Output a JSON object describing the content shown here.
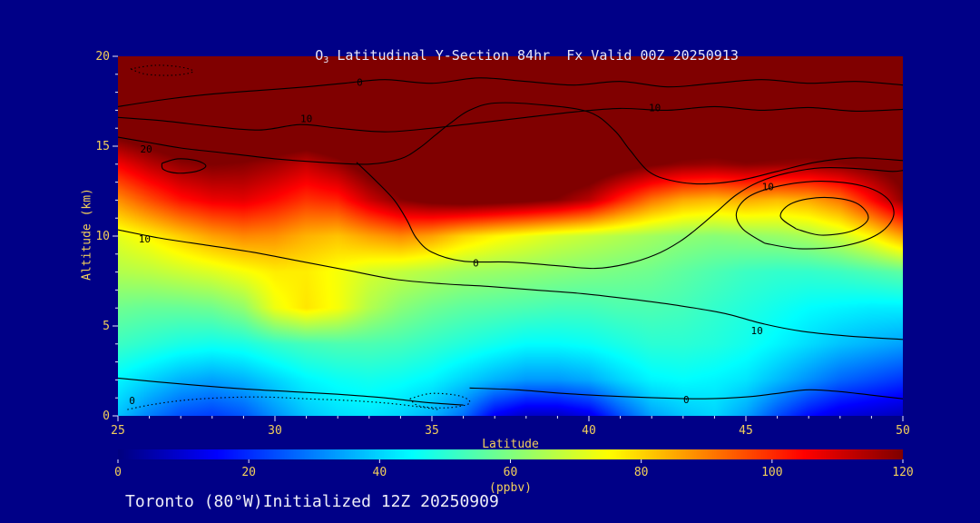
{
  "colors": {
    "background": "#000087",
    "title_text": "#e6e6fa",
    "axis_text": "#f2cf5b",
    "tick_mark": "#e9e9ff",
    "footer_text": "#eeeef8",
    "contour_line": "#000000"
  },
  "title": {
    "prefix": "O",
    "sub": "3",
    "rest": " Latitudinal Y-Section 84hr  Fx Valid 00Z 20250913"
  },
  "footer": {
    "text": "Toronto (80°W)Initialized 12Z 20250909"
  },
  "axes": {
    "x": {
      "label": "Latitude",
      "min": 25,
      "max": 50,
      "ticks": [
        25,
        30,
        35,
        40,
        45,
        50
      ],
      "minor_step": 1
    },
    "y": {
      "label": "Altitude (km)",
      "min": 0,
      "max": 20,
      "ticks": [
        0,
        5,
        10,
        15,
        20
      ],
      "minor_step": 1
    }
  },
  "colorbar": {
    "min": 0,
    "max": 120,
    "ticks": [
      0,
      20,
      40,
      60,
      80,
      100,
      120
    ],
    "label": "(ppbv)"
  },
  "chart_data": {
    "type": "heatmap",
    "title": "O3 Latitudinal Y-Section 84hr  Fx Valid 00Z 20250913",
    "xlabel": "Latitude",
    "ylabel": "Altitude (km)",
    "colorbar_label": "(ppbv)",
    "colormap": "jet",
    "value_range": [
      0,
      120
    ],
    "x_lats": [
      25,
      26,
      27,
      28,
      29,
      30,
      31,
      32,
      33,
      34,
      35,
      36,
      37,
      38,
      39,
      40,
      41,
      42,
      43,
      44,
      45,
      46,
      47,
      48,
      49,
      50
    ],
    "y_alts": [
      0,
      2,
      4,
      6,
      8,
      10,
      12,
      14,
      16,
      18,
      20
    ],
    "values_ppbv": [
      [
        38,
        30,
        24,
        22,
        25,
        32,
        38,
        41,
        42,
        40,
        36,
        28,
        14,
        8,
        8,
        12,
        24,
        34,
        38,
        40,
        34,
        24,
        16,
        11,
        9,
        7
      ],
      [
        44,
        40,
        36,
        34,
        36,
        40,
        44,
        46,
        47,
        46,
        44,
        40,
        36,
        33,
        33,
        35,
        40,
        44,
        45,
        44,
        42,
        37,
        32,
        27,
        24,
        21
      ],
      [
        52,
        50,
        48,
        47,
        48,
        51,
        53,
        54,
        54,
        53,
        51,
        49,
        47,
        45,
        45,
        46,
        48,
        50,
        50,
        49,
        47,
        44,
        41,
        38,
        36,
        34
      ],
      [
        58,
        57,
        57,
        58,
        62,
        73,
        78,
        74,
        66,
        61,
        58,
        56,
        55,
        54,
        53,
        53,
        54,
        54,
        53,
        51,
        49,
        47,
        45,
        44,
        43,
        43
      ],
      [
        66,
        67,
        69,
        71,
        74,
        77,
        77,
        74,
        70,
        68,
        66,
        64,
        63,
        62,
        61,
        60,
        59,
        58,
        56,
        54,
        52,
        51,
        51,
        52,
        54,
        56
      ],
      [
        72,
        76,
        81,
        86,
        89,
        88,
        84,
        82,
        86,
        89,
        86,
        80,
        76,
        73,
        70,
        68,
        66,
        64,
        62,
        61,
        62,
        63,
        65,
        69,
        76,
        86
      ],
      [
        88,
        96,
        103,
        107,
        108,
        104,
        99,
        101,
        111,
        119,
        123,
        125,
        124,
        122,
        119,
        113,
        101,
        91,
        85,
        83,
        85,
        83,
        85,
        91,
        104,
        118
      ],
      [
        106,
        113,
        118,
        120,
        119,
        116,
        112,
        117,
        125,
        131,
        133,
        134,
        134,
        133,
        131,
        129,
        125,
        121,
        118,
        117,
        119,
        118,
        117,
        119,
        122,
        125
      ],
      [
        126,
        129,
        132,
        134,
        134,
        133,
        132,
        134,
        137,
        139,
        140,
        140,
        140,
        139,
        138,
        137,
        136,
        134,
        133,
        132,
        133,
        132,
        132,
        133,
        134,
        136
      ],
      [
        140,
        142,
        144,
        145,
        145,
        144,
        144,
        145,
        147,
        148,
        148,
        148,
        148,
        147,
        147,
        146,
        146,
        145,
        144,
        144,
        144,
        144,
        144,
        145,
        145,
        146
      ],
      [
        148,
        149,
        150,
        151,
        151,
        150,
        150,
        151,
        152,
        153,
        153,
        153,
        153,
        152,
        152,
        151,
        151,
        150,
        150,
        150,
        150,
        150,
        150,
        151,
        151,
        152
      ]
    ],
    "contours": [
      {
        "style": "solid",
        "points": [
          [
            25,
            17.2
          ],
          [
            26.5,
            17.6
          ],
          [
            28,
            17.9
          ],
          [
            29.5,
            18.1
          ],
          [
            31,
            18.3
          ],
          [
            32.2,
            18.5
          ],
          [
            33.5,
            18.7
          ],
          [
            35,
            18.5
          ],
          [
            36.5,
            18.8
          ],
          [
            38,
            18.6
          ],
          [
            39.5,
            18.4
          ],
          [
            41,
            18.6
          ],
          [
            42.5,
            18.3
          ],
          [
            44,
            18.5
          ],
          [
            45.5,
            18.7
          ],
          [
            47,
            18.5
          ],
          [
            48.5,
            18.6
          ],
          [
            50,
            18.4
          ]
        ],
        "labels": [
          {
            "text": "0",
            "at": [
              32.7,
              18.55
            ]
          }
        ]
      },
      {
        "style": "dotted",
        "points": [
          [
            25.4,
            19.3
          ],
          [
            26.2,
            19.5
          ],
          [
            27,
            19.4
          ],
          [
            27.4,
            19.15
          ],
          [
            26.8,
            18.95
          ],
          [
            25.9,
            19.0
          ],
          [
            25.4,
            19.3
          ]
        ],
        "labels": []
      },
      {
        "style": "solid",
        "points": [
          [
            25,
            16.6
          ],
          [
            26.5,
            16.4
          ],
          [
            28,
            16.1
          ],
          [
            29.5,
            15.9
          ],
          [
            30.8,
            16.2
          ],
          [
            32,
            16.0
          ],
          [
            33.5,
            15.8
          ],
          [
            35,
            16.0
          ],
          [
            36.5,
            16.3
          ],
          [
            38,
            16.6
          ],
          [
            39.5,
            16.9
          ],
          [
            41,
            17.1
          ],
          [
            42.5,
            17.0
          ],
          [
            44,
            17.2
          ],
          [
            45.5,
            17.0
          ],
          [
            47,
            17.15
          ],
          [
            48.5,
            16.95
          ],
          [
            50,
            17.05
          ]
        ],
        "labels": [
          {
            "text": "10",
            "at": [
              31.0,
              16.55
            ]
          },
          {
            "text": "10",
            "at": [
              42.1,
              17.15
            ]
          }
        ]
      },
      {
        "style": "solid",
        "points": [
          [
            25,
            15.5
          ],
          [
            26,
            15.2
          ],
          [
            27,
            14.9
          ],
          [
            28.5,
            14.6
          ],
          [
            30,
            14.3
          ],
          [
            31.5,
            14.1
          ],
          [
            33,
            14.0
          ],
          [
            34,
            14.3
          ],
          [
            34.6,
            14.9
          ],
          [
            35.1,
            15.6
          ],
          [
            35.6,
            16.3
          ],
          [
            36.2,
            17.0
          ],
          [
            37,
            17.4
          ],
          [
            38.5,
            17.3
          ],
          [
            40,
            16.9
          ],
          [
            40.8,
            15.9
          ],
          [
            41.3,
            14.8
          ],
          [
            41.9,
            13.6
          ],
          [
            42.6,
            13.1
          ],
          [
            43.6,
            12.9
          ],
          [
            44.8,
            13.1
          ],
          [
            46,
            13.6
          ],
          [
            47.2,
            14.1
          ],
          [
            48.5,
            14.35
          ],
          [
            50,
            14.2
          ]
        ],
        "labels": [
          {
            "text": "20",
            "at": [
              25.9,
              14.85
            ]
          }
        ]
      },
      {
        "style": "solid",
        "points": [
          [
            26.4,
            14.05
          ],
          [
            26.9,
            14.3
          ],
          [
            27.5,
            14.2
          ],
          [
            27.8,
            13.9
          ],
          [
            27.5,
            13.6
          ],
          [
            26.9,
            13.5
          ],
          [
            26.45,
            13.7
          ],
          [
            26.4,
            14.05
          ]
        ],
        "labels": []
      },
      {
        "style": "solid",
        "points": [
          [
            25,
            10.35
          ],
          [
            26.3,
            9.9
          ],
          [
            27.8,
            9.5
          ],
          [
            29.3,
            9.1
          ],
          [
            30.8,
            8.6
          ],
          [
            32.3,
            8.1
          ],
          [
            33.8,
            7.6
          ],
          [
            35.3,
            7.35
          ],
          [
            36.8,
            7.2
          ],
          [
            38.3,
            7.0
          ],
          [
            39.8,
            6.8
          ],
          [
            41.3,
            6.5
          ],
          [
            42.8,
            6.15
          ],
          [
            44.3,
            5.7
          ],
          [
            45.6,
            5.1
          ],
          [
            46.8,
            4.7
          ],
          [
            48.2,
            4.45
          ],
          [
            50,
            4.25
          ]
        ],
        "labels": [
          {
            "text": "10",
            "at": [
              25.85,
              9.85
            ]
          },
          {
            "text": "10",
            "at": [
              45.35,
              4.75
            ]
          }
        ]
      },
      {
        "style": "solid",
        "points": [
          [
            32.6,
            14.1
          ],
          [
            33.2,
            13.1
          ],
          [
            33.8,
            12.0
          ],
          [
            34.2,
            10.9
          ],
          [
            34.5,
            9.9
          ],
          [
            35,
            9.1
          ],
          [
            36,
            8.6
          ],
          [
            37.5,
            8.55
          ],
          [
            39,
            8.35
          ],
          [
            40.2,
            8.2
          ],
          [
            41.2,
            8.45
          ],
          [
            42.1,
            8.95
          ],
          [
            42.9,
            9.7
          ],
          [
            43.5,
            10.5
          ],
          [
            44.1,
            11.4
          ],
          [
            44.7,
            12.3
          ],
          [
            45.4,
            13.0
          ],
          [
            46.3,
            13.5
          ],
          [
            47.4,
            13.8
          ],
          [
            48.6,
            13.75
          ],
          [
            49.6,
            13.6
          ],
          [
            50,
            13.65
          ]
        ],
        "labels": [
          {
            "text": "0",
            "at": [
              36.4,
              8.5
            ]
          }
        ]
      },
      {
        "style": "solid",
        "points": [
          [
            45.6,
            9.6
          ],
          [
            44.9,
            10.4
          ],
          [
            44.7,
            11.3
          ],
          [
            45.1,
            12.2
          ],
          [
            46.1,
            12.8
          ],
          [
            47.4,
            13.05
          ],
          [
            48.7,
            12.8
          ],
          [
            49.5,
            12.1
          ],
          [
            49.7,
            11.1
          ],
          [
            49.2,
            10.1
          ],
          [
            48.1,
            9.45
          ],
          [
            46.7,
            9.3
          ],
          [
            45.6,
            9.6
          ]
        ],
        "labels": [
          {
            "text": "10",
            "at": [
              45.7,
              12.75
            ]
          }
        ]
      },
      {
        "style": "solid",
        "points": [
          [
            46.6,
            10.4
          ],
          [
            46.1,
            11.1
          ],
          [
            46.5,
            11.85
          ],
          [
            47.5,
            12.15
          ],
          [
            48.5,
            11.85
          ],
          [
            48.9,
            11.0
          ],
          [
            48.4,
            10.3
          ],
          [
            47.4,
            10.05
          ],
          [
            46.6,
            10.4
          ]
        ],
        "labels": []
      },
      {
        "style": "solid",
        "points": [
          [
            25,
            2.1
          ],
          [
            26.2,
            1.9
          ],
          [
            27.5,
            1.7
          ],
          [
            29,
            1.5
          ],
          [
            30.5,
            1.35
          ],
          [
            32,
            1.2
          ],
          [
            33.5,
            1.0
          ],
          [
            34.8,
            0.75
          ],
          [
            36,
            0.6
          ]
        ],
        "labels": []
      },
      {
        "style": "dotted",
        "points": [
          [
            25.3,
            0.35
          ],
          [
            26,
            0.6
          ],
          [
            27,
            0.85
          ],
          [
            28.2,
            1.0
          ],
          [
            29.6,
            1.05
          ],
          [
            31,
            0.95
          ],
          [
            32.4,
            0.85
          ],
          [
            33.6,
            0.7
          ],
          [
            34.6,
            0.5
          ],
          [
            35.2,
            0.35
          ]
        ],
        "labels": [
          {
            "text": "0",
            "at": [
              25.45,
              0.85
            ]
          }
        ]
      },
      {
        "style": "dotted",
        "points": [
          [
            34.3,
            0.95
          ],
          [
            35,
            1.25
          ],
          [
            35.9,
            1.1
          ],
          [
            36.2,
            0.7
          ],
          [
            35.5,
            0.45
          ],
          [
            34.6,
            0.55
          ],
          [
            34.3,
            0.95
          ]
        ],
        "labels": []
      },
      {
        "style": "solid",
        "points": [
          [
            36.2,
            1.55
          ],
          [
            37.7,
            1.45
          ],
          [
            39.2,
            1.25
          ],
          [
            40.7,
            1.1
          ],
          [
            42.2,
            1.0
          ],
          [
            43.7,
            0.95
          ],
          [
            45,
            1.05
          ],
          [
            46,
            1.25
          ],
          [
            47,
            1.45
          ],
          [
            48,
            1.35
          ],
          [
            49,
            1.15
          ],
          [
            50,
            0.95
          ]
        ],
        "labels": [
          {
            "text": "0",
            "at": [
              43.1,
              0.92
            ]
          }
        ]
      }
    ]
  }
}
